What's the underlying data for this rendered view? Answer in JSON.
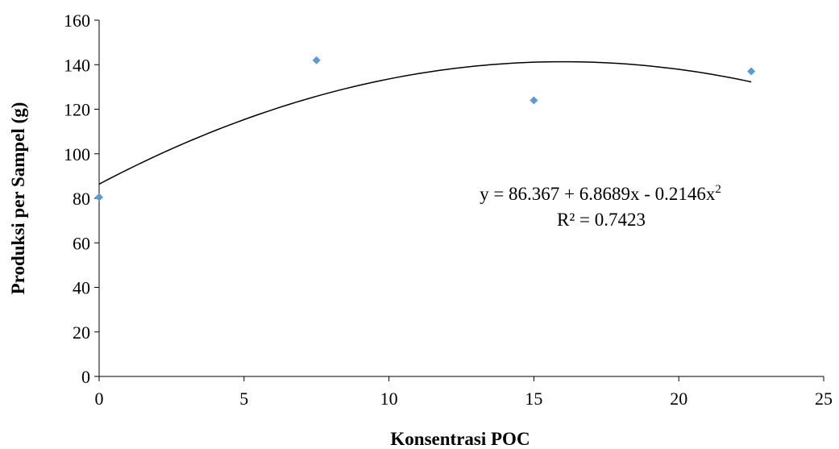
{
  "chart_data": {
    "type": "scatter",
    "x": [
      0,
      7.5,
      15,
      22.5
    ],
    "y": [
      80.5,
      142,
      124,
      137
    ],
    "xlabel": "Konsentrasi POC",
    "ylabel": "Produksi per Sampel (g)",
    "xlim": [
      0,
      25
    ],
    "ylim": [
      0,
      160
    ],
    "xticks": [
      0,
      5,
      10,
      15,
      20,
      25
    ],
    "yticks": [
      0,
      20,
      40,
      60,
      80,
      100,
      120,
      140,
      160
    ],
    "grid": false,
    "marker_color": "#5B9BD5",
    "trendline": {
      "type": "polynomial",
      "order": 2,
      "coefficients": [
        86.367,
        6.8689,
        -0.2146
      ],
      "x_range": [
        0,
        22.5
      ],
      "color": "#000000"
    },
    "annotations": {
      "equation_main": "y = 86.367 + 6.8689x - 0.2146x",
      "equation_exp": "2",
      "r_squared": "R² = 0.7423"
    }
  }
}
